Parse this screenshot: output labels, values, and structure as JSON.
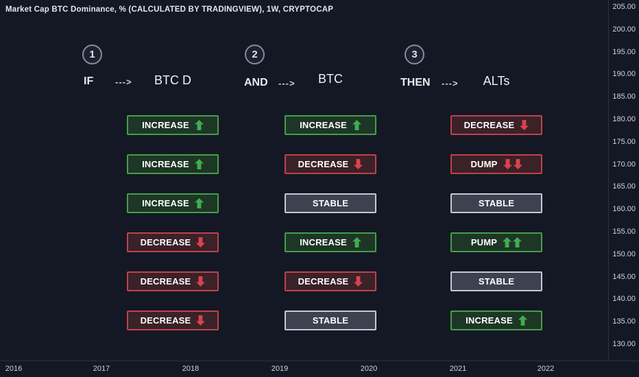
{
  "title": "Market Cap BTC Dominance, % (CALCULATED BY TRADINGVIEW), 1W, CRYPTOCAP",
  "columns": [
    {
      "num": "1",
      "keyword": "IF",
      "arrow": "--->",
      "target": "BTC D"
    },
    {
      "num": "2",
      "keyword": "AND",
      "arrow": "--->",
      "target": "BTC"
    },
    {
      "num": "3",
      "keyword": "THEN",
      "arrow": "--->",
      "target": "ALTs"
    }
  ],
  "rows": [
    {
      "if": {
        "label": "INCREASE",
        "status": "green",
        "direction": "up",
        "arrows": 1
      },
      "and": {
        "label": "INCREASE",
        "status": "green",
        "direction": "up",
        "arrows": 1
      },
      "then": {
        "label": "DECREASE",
        "status": "red",
        "direction": "down",
        "arrows": 1
      }
    },
    {
      "if": {
        "label": "INCREASE",
        "status": "green",
        "direction": "up",
        "arrows": 1
      },
      "and": {
        "label": "DECREASE",
        "status": "red",
        "direction": "down",
        "arrows": 1
      },
      "then": {
        "label": "DUMP",
        "status": "red",
        "direction": "down",
        "arrows": 2
      }
    },
    {
      "if": {
        "label": "INCREASE",
        "status": "green",
        "direction": "up",
        "arrows": 1
      },
      "and": {
        "label": "STABLE",
        "status": "gray",
        "direction": "none",
        "arrows": 0
      },
      "then": {
        "label": "STABLE",
        "status": "gray",
        "direction": "none",
        "arrows": 0
      }
    },
    {
      "if": {
        "label": "DECREASE",
        "status": "red",
        "direction": "down",
        "arrows": 1
      },
      "and": {
        "label": "INCREASE",
        "status": "green",
        "direction": "up",
        "arrows": 1
      },
      "then": {
        "label": "PUMP",
        "status": "green",
        "direction": "up",
        "arrows": 2
      }
    },
    {
      "if": {
        "label": "DECREASE",
        "status": "red",
        "direction": "down",
        "arrows": 1
      },
      "and": {
        "label": "DECREASE",
        "status": "red",
        "direction": "down",
        "arrows": 1
      },
      "then": {
        "label": "STABLE",
        "status": "gray",
        "direction": "none",
        "arrows": 0
      }
    },
    {
      "if": {
        "label": "DECREASE",
        "status": "red",
        "direction": "down",
        "arrows": 1
      },
      "and": {
        "label": "STABLE",
        "status": "gray",
        "direction": "none",
        "arrows": 0
      },
      "then": {
        "label": "INCREASE",
        "status": "green",
        "direction": "up",
        "arrows": 1
      }
    }
  ],
  "price_axis": {
    "labels": [
      "205.00",
      "200.00",
      "195.00",
      "190.00",
      "185.00",
      "180.00",
      "175.00",
      "170.00",
      "165.00",
      "160.00",
      "155.00",
      "150.00",
      "145.00",
      "140.00",
      "135.00",
      "130.00"
    ]
  },
  "time_axis": {
    "labels": [
      "2016",
      "2017",
      "2018",
      "2019",
      "2020",
      "2021",
      "2022"
    ]
  },
  "colors": {
    "background": "#141824",
    "green": "#3fae4e",
    "green_border": "#43a047",
    "red": "#d8434e",
    "red_border": "#c0414b",
    "gray_border": "#c6c9d0",
    "axis_text": "#d1d4dc"
  },
  "chart_data": {
    "type": "table",
    "title": "Market Cap BTC Dominance, % (CALCULATED BY TRADINGVIEW), 1W, CRYPTOCAP",
    "columns": [
      "IF ---> BTC D",
      "AND ---> BTC",
      "THEN ---> ALTs"
    ],
    "rows": [
      [
        "INCREASE ↑",
        "INCREASE ↑",
        "DECREASE ↓"
      ],
      [
        "INCREASE ↑",
        "DECREASE ↓",
        "DUMP ↓↓"
      ],
      [
        "INCREASE ↑",
        "STABLE",
        "STABLE"
      ],
      [
        "DECREASE ↓",
        "INCREASE ↑",
        "PUMP ↑↑"
      ],
      [
        "DECREASE ↓",
        "DECREASE ↓",
        "STABLE"
      ],
      [
        "DECREASE ↓",
        "STABLE",
        "INCREASE ↑"
      ]
    ],
    "y_axis_range": [
      130.0,
      205.0
    ],
    "y_tick_step": 5.0,
    "x_axis_labels": [
      "2016",
      "2017",
      "2018",
      "2019",
      "2020",
      "2021",
      "2022"
    ],
    "grid": "off",
    "legend": "none"
  }
}
